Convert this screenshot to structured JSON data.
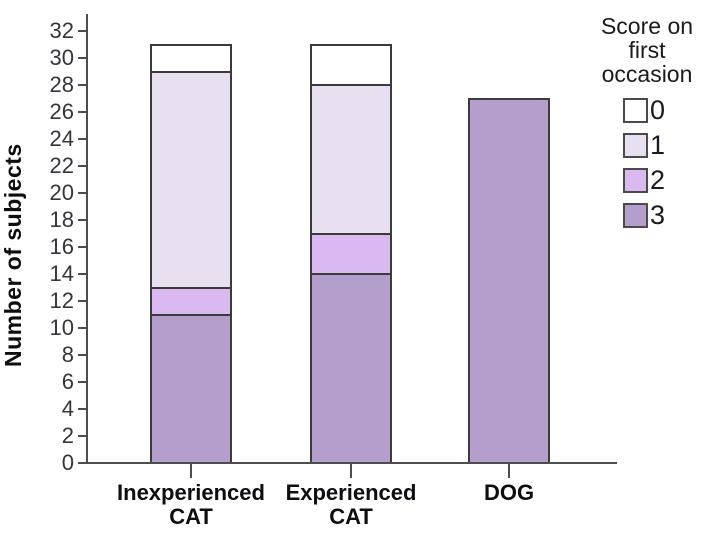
{
  "chart_data": {
    "type": "bar",
    "subtype": "stacked-vertical",
    "title": "",
    "ylabel": "Number of subjects",
    "xlabel": "",
    "ylim": [
      0,
      32
    ],
    "y_tick_step": 2,
    "y_ticks": [
      0,
      2,
      4,
      6,
      8,
      10,
      12,
      14,
      16,
      18,
      20,
      22,
      24,
      26,
      28,
      30,
      32
    ],
    "grid": "off",
    "categories": [
      {
        "lines": [
          "Inexperienced",
          "CAT"
        ]
      },
      {
        "lines": [
          "Experienced",
          "CAT"
        ]
      },
      {
        "lines": [
          "DOG"
        ]
      }
    ],
    "series": [
      {
        "name": "0",
        "color": "#ffffff",
        "values": [
          2,
          3,
          0
        ]
      },
      {
        "name": "1",
        "color": "#e8e0f0",
        "values": [
          16,
          11,
          0
        ]
      },
      {
        "name": "2",
        "color": "#d9b9ef",
        "values": [
          2,
          3,
          0
        ]
      },
      {
        "name": "3",
        "color": "#b49ecb",
        "values": [
          11,
          14,
          27
        ]
      }
    ],
    "stack_order_bottom_to_top": [
      "3",
      "2",
      "1",
      "0"
    ],
    "bar_totals": [
      31,
      31,
      27
    ],
    "legend": {
      "position": "top-right",
      "title_lines": [
        "Score on",
        "first",
        "occasion"
      ],
      "entries": [
        "0",
        "1",
        "2",
        "3"
      ]
    }
  }
}
